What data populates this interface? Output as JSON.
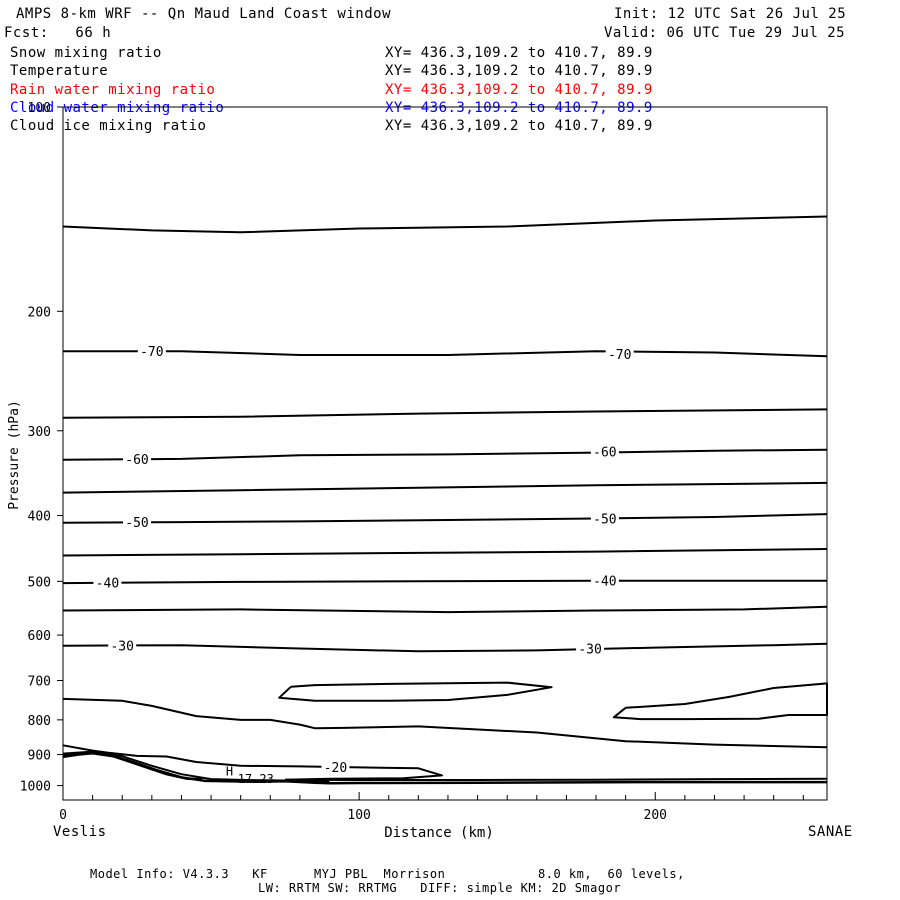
{
  "header": {
    "title": "AMPS 8-km WRF -- Qn Maud Land Coast window",
    "init": "Init: 12 UTC Sat 26 Jul 25",
    "fcst": "Fcst:   66 h",
    "valid": "Valid: 06 UTC Tue 29 Jul 25"
  },
  "legend": [
    {
      "label": "Snow mixing ratio",
      "xy": "XY= 436.3,109.2 to 410.7, 89.9",
      "color": "#000000"
    },
    {
      "label": "Temperature",
      "xy": "XY= 436.3,109.2 to 410.7, 89.9",
      "color": "#000000"
    },
    {
      "label": "Rain water mixing ratio",
      "xy": "XY= 436.3,109.2 to 410.7, 89.9",
      "color": "#ff0000"
    },
    {
      "label": "Cloud water mixing ratio",
      "xy": "XY= 436.3,109.2 to 410.7, 89.9",
      "color": "#0000ff"
    },
    {
      "label": "Cloud ice mixing ratio",
      "xy": "XY= 436.3,109.2 to 410.7, 89.9",
      "color": "#000000"
    }
  ],
  "endpoints": {
    "left": "Veslis",
    "right": "SANAE"
  },
  "footer": {
    "line1": "Model Info: V4.3.3   KF      MYJ PBL  Morrison            8.0 km,  60 levels,",
    "line2": "LW: RRTM SW: RRTMG   DIFF: simple KM: 2D Smagor"
  },
  "chart_data": {
    "type": "line",
    "xlabel": "Distance (km)",
    "ylabel": "Pressure (hPa)",
    "xlim": [
      0,
      258
    ],
    "ylim": [
      100,
      1050
    ],
    "y_log": true,
    "x_ticks": [
      0,
      100,
      200
    ],
    "y_ticks": [
      100,
      200,
      300,
      400,
      500,
      600,
      700,
      800,
      900,
      1000
    ],
    "grid": false,
    "series": [
      {
        "name": "isotherm",
        "points": [
          [
            0,
            150
          ],
          [
            30,
            152
          ],
          [
            60,
            153
          ],
          [
            100,
            151
          ],
          [
            150,
            150
          ],
          [
            200,
            147
          ],
          [
            258,
            145
          ]
        ]
      },
      {
        "name": "isotherm -70",
        "points": [
          [
            0,
            229
          ],
          [
            40,
            229
          ],
          [
            80,
            232
          ],
          [
            130,
            232
          ],
          [
            180,
            229
          ],
          [
            220,
            230
          ],
          [
            258,
            233
          ]
        ]
      },
      {
        "name": "isotherm",
        "points": [
          [
            0,
            287
          ],
          [
            60,
            286
          ],
          [
            120,
            283
          ],
          [
            180,
            281
          ],
          [
            258,
            279
          ]
        ]
      },
      {
        "name": "isotherm -60",
        "points": [
          [
            0,
            331
          ],
          [
            40,
            330
          ],
          [
            80,
            326
          ],
          [
            130,
            325
          ],
          [
            180,
            323
          ],
          [
            220,
            321
          ],
          [
            258,
            320
          ]
        ]
      },
      {
        "name": "isotherm",
        "points": [
          [
            0,
            370
          ],
          [
            60,
            367
          ],
          [
            120,
            364
          ],
          [
            180,
            361
          ],
          [
            258,
            358
          ]
        ]
      },
      {
        "name": "isotherm -50",
        "points": [
          [
            0,
            410
          ],
          [
            40,
            409
          ],
          [
            80,
            408
          ],
          [
            130,
            406
          ],
          [
            180,
            404
          ],
          [
            220,
            402
          ],
          [
            258,
            398
          ]
        ]
      },
      {
        "name": "isotherm",
        "points": [
          [
            0,
            458
          ],
          [
            60,
            456
          ],
          [
            120,
            454
          ],
          [
            180,
            452
          ],
          [
            258,
            448
          ]
        ]
      },
      {
        "name": "isotherm -40",
        "points": [
          [
            0,
            503
          ],
          [
            60,
            501
          ],
          [
            120,
            500
          ],
          [
            180,
            499
          ],
          [
            258,
            499
          ]
        ]
      },
      {
        "name": "isotherm",
        "points": [
          [
            0,
            552
          ],
          [
            60,
            550
          ],
          [
            130,
            555
          ],
          [
            180,
            552
          ],
          [
            230,
            550
          ],
          [
            258,
            545
          ]
        ]
      },
      {
        "name": "isotherm -30",
        "points": [
          [
            0,
            622
          ],
          [
            40,
            621
          ],
          [
            80,
            628
          ],
          [
            120,
            634
          ],
          [
            160,
            632
          ],
          [
            200,
            626
          ],
          [
            240,
            621
          ],
          [
            258,
            618
          ]
        ]
      },
      {
        "name": "isotherm",
        "points": [
          [
            0,
            745
          ],
          [
            20,
            750
          ],
          [
            30,
            763
          ],
          [
            45,
            790
          ],
          [
            60,
            800
          ],
          [
            70,
            800
          ],
          [
            80,
            813
          ],
          [
            85,
            823
          ],
          [
            95,
            822
          ],
          [
            120,
            818
          ],
          [
            160,
            835
          ],
          [
            190,
            860
          ],
          [
            220,
            870
          ],
          [
            258,
            878
          ]
        ]
      },
      {
        "name": "isotherm closed",
        "points": [
          [
            77,
            715
          ],
          [
            85,
            711
          ],
          [
            110,
            708
          ],
          [
            150,
            705
          ],
          [
            165,
            716
          ],
          [
            150,
            735
          ],
          [
            130,
            748
          ],
          [
            110,
            750
          ],
          [
            85,
            750
          ],
          [
            73,
            742
          ],
          [
            77,
            715
          ]
        ]
      },
      {
        "name": "isotherm closed",
        "points": [
          [
            190,
            768
          ],
          [
            210,
            758
          ],
          [
            225,
            740
          ],
          [
            240,
            718
          ],
          [
            258,
            707
          ],
          [
            258,
            787
          ],
          [
            245,
            787
          ],
          [
            235,
            797
          ],
          [
            210,
            798
          ],
          [
            195,
            798
          ],
          [
            186,
            793
          ],
          [
            190,
            768
          ]
        ]
      },
      {
        "name": "isotherm -20",
        "points": [
          [
            0,
            872
          ],
          [
            10,
            888
          ],
          [
            15,
            894
          ],
          [
            25,
            904
          ],
          [
            35,
            906
          ],
          [
            45,
            923
          ],
          [
            60,
            935
          ],
          [
            80,
            937
          ],
          [
            100,
            940
          ],
          [
            120,
            943
          ],
          [
            128,
            966
          ],
          [
            115,
            975
          ],
          [
            90,
            977
          ],
          [
            75,
            980
          ]
        ]
      },
      {
        "name": "isotherm",
        "points": [
          [
            75,
            980
          ],
          [
            100,
            981
          ],
          [
            140,
            981
          ],
          [
            180,
            980
          ],
          [
            220,
            978
          ],
          [
            258,
            977
          ]
        ]
      },
      {
        "name": "ground",
        "points": [
          [
            0,
            903
          ],
          [
            3,
            898
          ],
          [
            10,
            895
          ],
          [
            15,
            900
          ],
          [
            22,
            918
          ],
          [
            32,
            950
          ],
          [
            40,
            972
          ],
          [
            48,
            984
          ],
          [
            65,
            987
          ],
          [
            75,
            985
          ],
          [
            85,
            990
          ],
          [
            90,
            992
          ],
          [
            100,
            991
          ],
          [
            140,
            990
          ],
          [
            200,
            988
          ],
          [
            258,
            988
          ]
        ]
      },
      {
        "name": "ground-2",
        "points": [
          [
            0,
            907
          ],
          [
            5,
            900
          ],
          [
            10,
            896
          ],
          [
            17,
            905
          ],
          [
            25,
            930
          ],
          [
            35,
            962
          ],
          [
            42,
            977
          ],
          [
            47,
            978
          ]
        ]
      },
      {
        "name": "upper-low",
        "points": [
          [
            0,
            897
          ],
          [
            10,
            891
          ],
          [
            20,
            905
          ],
          [
            30,
            935
          ],
          [
            40,
            962
          ],
          [
            50,
            978
          ],
          [
            62,
            981
          ],
          [
            78,
            983
          ],
          [
            90,
            985
          ]
        ]
      }
    ],
    "contour_labels": [
      {
        "text": "-70",
        "x": 30,
        "p": 229
      },
      {
        "text": "-70",
        "x": 188,
        "p": 231
      },
      {
        "text": "-60",
        "x": 25,
        "p": 330
      },
      {
        "text": "-60",
        "x": 183,
        "p": 322
      },
      {
        "text": "-50",
        "x": 25,
        "p": 409
      },
      {
        "text": "-50",
        "x": 183,
        "p": 404
      },
      {
        "text": "-40",
        "x": 15,
        "p": 502
      },
      {
        "text": "-40",
        "x": 183,
        "p": 499
      },
      {
        "text": "-30",
        "x": 20,
        "p": 622
      },
      {
        "text": "-30",
        "x": 178,
        "p": 628
      },
      {
        "text": "-20",
        "x": 92,
        "p": 938
      }
    ],
    "annotations": [
      {
        "text": "H",
        "x": 55,
        "p": 950
      },
      {
        "text": "17.23",
        "x": 59,
        "p": 975
      }
    ]
  }
}
